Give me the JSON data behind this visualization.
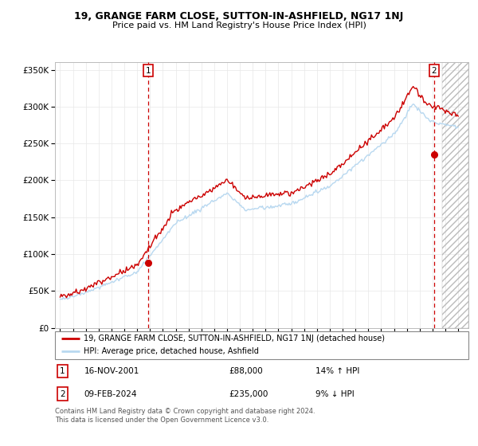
{
  "title": "19, GRANGE FARM CLOSE, SUTTON-IN-ASHFIELD, NG17 1NJ",
  "subtitle": "Price paid vs. HM Land Registry's House Price Index (HPI)",
  "legend_line1": "19, GRANGE FARM CLOSE, SUTTON-IN-ASHFIELD, NG17 1NJ (detached house)",
  "legend_line2": "HPI: Average price, detached house, Ashfield",
  "annotation1_label": "1",
  "annotation1_date": "16-NOV-2001",
  "annotation1_price": "£88,000",
  "annotation1_hpi": "14% ↑ HPI",
  "annotation2_label": "2",
  "annotation2_date": "09-FEB-2024",
  "annotation2_price": "£235,000",
  "annotation2_hpi": "9% ↓ HPI",
  "footer": "Contains HM Land Registry data © Crown copyright and database right 2024.\nThis data is licensed under the Open Government Licence v3.0.",
  "hpi_color": "#b8d8f0",
  "price_color": "#cc0000",
  "annotation_color": "#cc0000",
  "ylim": [
    0,
    360000
  ],
  "yticks": [
    0,
    50000,
    100000,
    150000,
    200000,
    250000,
    300000,
    350000
  ],
  "sale1_x": 2001.88,
  "sale1_y": 88000,
  "sale2_x": 2024.12,
  "sale2_y": 235000,
  "hatch_start": 2024.75,
  "xmin": 1994.6,
  "xmax": 2026.8
}
